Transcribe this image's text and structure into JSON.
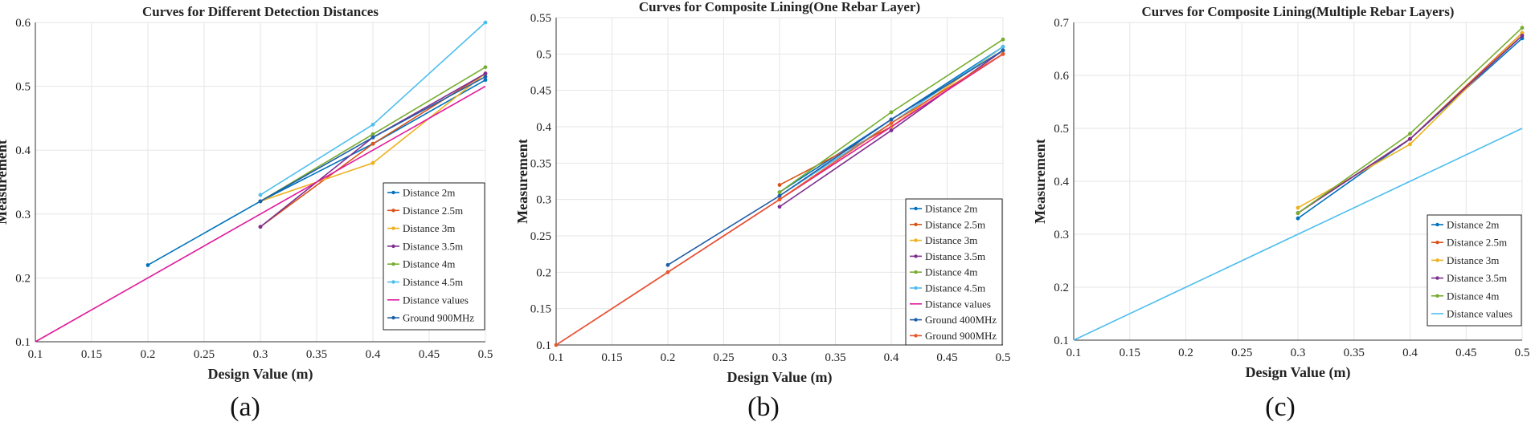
{
  "figure": {
    "panel_labels": [
      "(a)",
      "(b)",
      "(c)"
    ]
  },
  "chart_data": [
    {
      "type": "line",
      "title": "Curves for Different Detection Distances",
      "xlabel": "Design Value (m)",
      "ylabel": "Measurement",
      "xlim": [
        0.1,
        0.5
      ],
      "ylim": [
        0.1,
        0.6
      ],
      "xticks": [
        0.1,
        0.15,
        0.2,
        0.25,
        0.3,
        0.35,
        0.4,
        0.45,
        0.5
      ],
      "yticks": [
        0.1,
        0.2,
        0.3,
        0.4,
        0.5,
        0.6
      ],
      "xtick_labels": [
        "0.1",
        "0.15",
        "0.2",
        "0.25",
        "0.3",
        "0.35",
        "0.4",
        "0.45",
        "0.5"
      ],
      "ytick_labels": [
        "0.1",
        "0.2",
        "0.3",
        "0.4",
        "0.5",
        "0.6"
      ],
      "legend_position": "center-right",
      "series": [
        {
          "name": "Distance 2m",
          "color": "#0072bd",
          "x": [
            0.2,
            0.3,
            0.4,
            0.5
          ],
          "values": [
            0.22,
            0.32,
            0.41,
            0.51
          ]
        },
        {
          "name": "Distance 2.5m",
          "color": "#d95319",
          "x": [
            0.3,
            0.4,
            0.5
          ],
          "values": [
            0.28,
            0.41,
            0.52
          ]
        },
        {
          "name": "Distance 3m",
          "color": "#edb120",
          "x": [
            0.3,
            0.4,
            0.5
          ],
          "values": [
            0.32,
            0.38,
            0.52
          ]
        },
        {
          "name": "Distance 3.5m",
          "color": "#7e2f8e",
          "x": [
            0.3,
            0.4,
            0.5
          ],
          "values": [
            0.28,
            0.42,
            0.52
          ]
        },
        {
          "name": "Distance 4m",
          "color": "#77ac30",
          "x": [
            0.3,
            0.4,
            0.5
          ],
          "values": [
            0.32,
            0.425,
            0.53
          ]
        },
        {
          "name": "Distance 4.5m",
          "color": "#4dbeee",
          "x": [
            0.3,
            0.4,
            0.5
          ],
          "values": [
            0.33,
            0.44,
            0.6
          ]
        },
        {
          "name": "Distance values",
          "color": "#e0199c",
          "x": [
            0.1,
            0.2,
            0.3,
            0.4,
            0.5
          ],
          "values": [
            0.1,
            0.2,
            0.3,
            0.4,
            0.5
          ],
          "no_markers": true
        },
        {
          "name": "Ground 900MHz",
          "color": "#1f5fa8",
          "x": [
            0.3,
            0.4,
            0.5
          ],
          "values": [
            0.32,
            0.42,
            0.515
          ]
        }
      ]
    },
    {
      "type": "line",
      "title": "Curves for Composite Lining(One Rebar Layer)",
      "xlabel": "Design Value (m)",
      "ylabel": "Measurement",
      "xlim": [
        0.1,
        0.5
      ],
      "ylim": [
        0.1,
        0.55
      ],
      "xticks": [
        0.1,
        0.15,
        0.2,
        0.25,
        0.3,
        0.35,
        0.4,
        0.45,
        0.5
      ],
      "yticks": [
        0.1,
        0.15,
        0.2,
        0.25,
        0.3,
        0.35,
        0.4,
        0.45,
        0.5,
        0.55
      ],
      "xtick_labels": [
        "0.1",
        "0.15",
        "0.2",
        "0.25",
        "0.3",
        "0.35",
        "0.4",
        "0.45",
        "0.5"
      ],
      "ytick_labels": [
        "0.1",
        "0.15",
        "0.2",
        "0.25",
        "0.3",
        "0.35",
        "0.4",
        "0.45",
        "0.5",
        "0.55"
      ],
      "legend_position": "bottom-right",
      "series": [
        {
          "name": "Distance 2m",
          "color": "#0072bd",
          "x": [
            0.3,
            0.4,
            0.5
          ],
          "values": [
            0.31,
            0.41,
            0.51
          ]
        },
        {
          "name": "Distance 2.5m",
          "color": "#d95319",
          "x": [
            0.3,
            0.4,
            0.5
          ],
          "values": [
            0.32,
            0.4,
            0.5
          ]
        },
        {
          "name": "Distance 3m",
          "color": "#edb120",
          "x": [
            0.3,
            0.4,
            0.5
          ],
          "values": [
            0.3,
            0.4,
            0.51
          ]
        },
        {
          "name": "Distance 3.5m",
          "color": "#7e2f8e",
          "x": [
            0.3,
            0.4,
            0.5
          ],
          "values": [
            0.29,
            0.395,
            0.505
          ]
        },
        {
          "name": "Distance 4m",
          "color": "#77ac30",
          "x": [
            0.3,
            0.4,
            0.5
          ],
          "values": [
            0.31,
            0.42,
            0.52
          ]
        },
        {
          "name": "Distance 4.5m",
          "color": "#4dbeee",
          "x": [
            0.3,
            0.4,
            0.5
          ],
          "values": [
            0.305,
            0.405,
            0.51
          ]
        },
        {
          "name": "Distance values",
          "color": "#e0199c",
          "x": [
            0.1,
            0.2,
            0.3,
            0.4,
            0.5
          ],
          "values": [
            0.1,
            0.2,
            0.3,
            0.4,
            0.5
          ],
          "no_markers": true
        },
        {
          "name": "Ground 400MHz",
          "color": "#1f5fa8",
          "x": [
            0.2,
            0.3,
            0.4,
            0.5
          ],
          "values": [
            0.21,
            0.305,
            0.41,
            0.505
          ]
        },
        {
          "name": "Ground 900MHz",
          "color": "#e8562a",
          "x": [
            0.1,
            0.2,
            0.3,
            0.4,
            0.5
          ],
          "values": [
            0.1,
            0.2,
            0.3,
            0.405,
            0.5
          ]
        }
      ]
    },
    {
      "type": "line",
      "title": "Curves for Composite Lining(Multiple Rebar Layers)",
      "xlabel": "Design Value (m)",
      "ylabel": "Measurement",
      "xlim": [
        0.1,
        0.5
      ],
      "ylim": [
        0.1,
        0.7
      ],
      "xticks": [
        0.1,
        0.15,
        0.2,
        0.25,
        0.3,
        0.35,
        0.4,
        0.45,
        0.5
      ],
      "yticks": [
        0.1,
        0.2,
        0.3,
        0.4,
        0.5,
        0.6,
        0.7
      ],
      "xtick_labels": [
        "0.1",
        "0.15",
        "0.2",
        "0.25",
        "0.3",
        "0.35",
        "0.4",
        "0.45",
        "0.5"
      ],
      "ytick_labels": [
        "0.1",
        "0.2",
        "0.3",
        "0.4",
        "0.5",
        "0.6",
        "0.7"
      ],
      "legend_position": "bottom-right",
      "series": [
        {
          "name": "Distance 2m",
          "color": "#0072bd",
          "x": [
            0.3,
            0.4,
            0.5
          ],
          "values": [
            0.33,
            0.48,
            0.67
          ]
        },
        {
          "name": "Distance 2.5m",
          "color": "#d95319",
          "x": [
            0.3,
            0.4,
            0.5
          ],
          "values": [
            0.34,
            0.48,
            0.68
          ]
        },
        {
          "name": "Distance 3m",
          "color": "#edb120",
          "x": [
            0.3,
            0.4,
            0.5
          ],
          "values": [
            0.35,
            0.47,
            0.68
          ]
        },
        {
          "name": "Distance 3.5m",
          "color": "#7e2f8e",
          "x": [
            0.3,
            0.4,
            0.5
          ],
          "values": [
            0.34,
            0.48,
            0.675
          ]
        },
        {
          "name": "Distance 4m",
          "color": "#77ac30",
          "x": [
            0.3,
            0.4,
            0.5
          ],
          "values": [
            0.34,
            0.49,
            0.69
          ]
        },
        {
          "name": "Distance values",
          "color": "#4dbeee",
          "x": [
            0.1,
            0.2,
            0.3,
            0.4,
            0.5
          ],
          "values": [
            0.1,
            0.2,
            0.3,
            0.4,
            0.5
          ],
          "no_markers": true
        }
      ]
    }
  ]
}
